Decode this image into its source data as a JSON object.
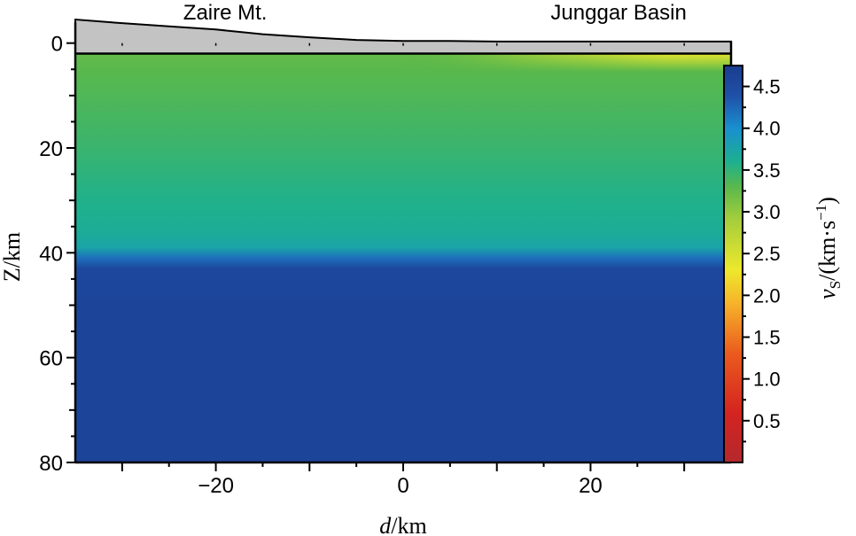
{
  "chart_data": {
    "type": "heatmap",
    "title": "",
    "xlabel": {
      "var": "d",
      "unit": "/km"
    },
    "ylabel": "Z/km",
    "colorbar_label": {
      "var": "v",
      "sub": "S",
      "unit": "/(km·s",
      "sup": "−1",
      "close": ")"
    },
    "xlim": [
      -35,
      35
    ],
    "ylim": [
      0,
      80
    ],
    "y_top": -4,
    "x_ticks": [
      -20,
      0,
      20
    ],
    "x_tick_labels": [
      "−20",
      "0",
      "20"
    ],
    "y_ticks": [
      0,
      20,
      40,
      60,
      80
    ],
    "y_tick_labels": [
      "0",
      "20",
      "40",
      "60",
      "80"
    ],
    "regions": [
      {
        "label": "Zaire Mt.",
        "x": -19
      },
      {
        "label": "Junggar Basin",
        "x": 23
      }
    ],
    "colorbar": {
      "min": 0.0,
      "max": 4.75,
      "ticks": [
        0.5,
        1.0,
        1.5,
        2.0,
        2.5,
        3.0,
        3.5,
        4.0,
        4.5
      ],
      "tick_labels": [
        "0.5",
        "1.0",
        "1.5",
        "2.0",
        "2.5",
        "3.0",
        "3.5",
        "4.0",
        "4.5"
      ],
      "stops": [
        {
          "v": 0.0,
          "color": "#b4282d"
        },
        {
          "v": 0.6,
          "color": "#d42420"
        },
        {
          "v": 1.3,
          "color": "#ea5a1e"
        },
        {
          "v": 1.9,
          "color": "#f6b22a"
        },
        {
          "v": 2.3,
          "color": "#eee82c"
        },
        {
          "v": 2.9,
          "color": "#a6ce3c"
        },
        {
          "v": 3.3,
          "color": "#59b84c"
        },
        {
          "v": 3.6,
          "color": "#1cb08f"
        },
        {
          "v": 4.0,
          "color": "#1a8fd0"
        },
        {
          "v": 4.4,
          "color": "#1f4fa7"
        },
        {
          "v": 4.75,
          "color": "#1a3d8f"
        }
      ]
    },
    "surface_elevation_km": {
      "x": [
        -35,
        -30,
        -25,
        -20,
        -15,
        -10,
        -5,
        0,
        5,
        10,
        20,
        35
      ],
      "z": [
        -4.5,
        -3.8,
        -3.2,
        -2.6,
        -1.7,
        -1.1,
        -0.6,
        -0.4,
        -0.4,
        -0.3,
        -0.3,
        -0.3
      ]
    },
    "velocity_profile": {
      "depth_km": [
        2,
        5,
        10,
        20,
        30,
        36,
        39,
        41,
        43,
        50,
        80
      ],
      "vs_km_s": [
        3.25,
        3.3,
        3.35,
        3.45,
        3.58,
        3.65,
        3.75,
        4.2,
        4.55,
        4.6,
        4.62
      ]
    },
    "basin_sediment": {
      "x_range": [
        0,
        35
      ],
      "bottom_depth_km": 3.5,
      "vs_km_s": 2.4
    }
  }
}
